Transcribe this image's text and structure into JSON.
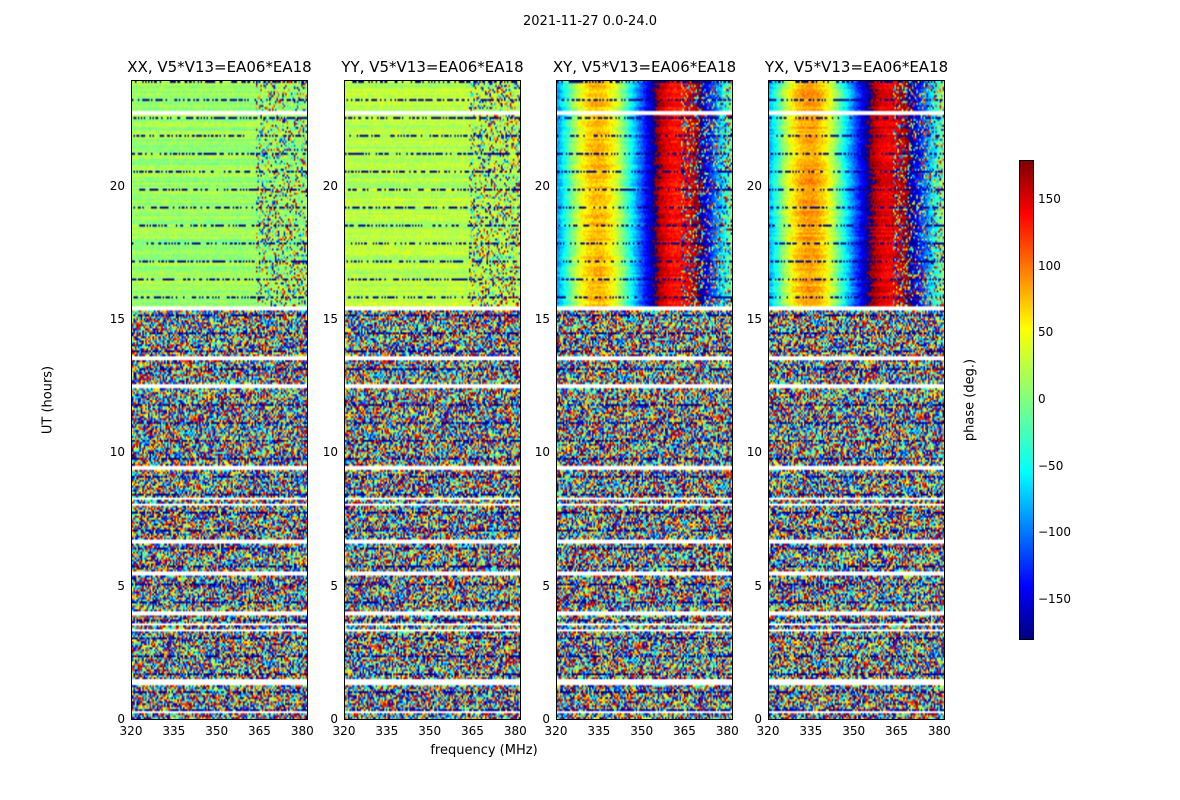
{
  "chart_data": {
    "type": "heatmap",
    "title": "2021-11-27 0.0-24.0",
    "xlabel": "frequency (MHz)",
    "ylabel": "UT (hours)",
    "xlim": [
      320,
      382
    ],
    "ylim": [
      0,
      24
    ],
    "x_ticks": [
      "320",
      "335",
      "350",
      "365",
      "380"
    ],
    "x_tick_values": [
      320,
      335,
      350,
      365,
      380
    ],
    "y_ticks": [
      "0",
      "5",
      "10",
      "15",
      "20"
    ],
    "y_tick_values": [
      0,
      5,
      10,
      15,
      20
    ],
    "colorbar": {
      "label": "phase (deg.)",
      "range": [
        -180,
        180
      ],
      "ticks": [
        "150",
        "100",
        "50",
        "0",
        "−50",
        "−100",
        "−150"
      ],
      "tick_values": [
        150,
        100,
        50,
        0,
        -50,
        -100,
        -150
      ],
      "colormap": "jet"
    },
    "panels": [
      {
        "title": "XX, V5*V13=EA06*EA18",
        "coherent_above_hours": 15.6,
        "base_phase": 10
      },
      {
        "title": "YY, V5*V13=EA06*EA18",
        "coherent_above_hours": 15.6,
        "base_phase": 20
      },
      {
        "title": "XY, V5*V13=EA06*EA18",
        "coherent_above_hours": 15.6,
        "base_phase": -80
      },
      {
        "title": "YX, V5*V13=EA06*EA18",
        "coherent_above_hours": 15.6,
        "base_phase": -70
      }
    ],
    "flagged_rows_hours": [
      0.3,
      1.4,
      1.5,
      3.4,
      3.6,
      4.0,
      5.5,
      6.7,
      8.1,
      8.3,
      9.5,
      12.5,
      12.6,
      13.6,
      15.45,
      15.55,
      22.8,
      22.9
    ]
  }
}
